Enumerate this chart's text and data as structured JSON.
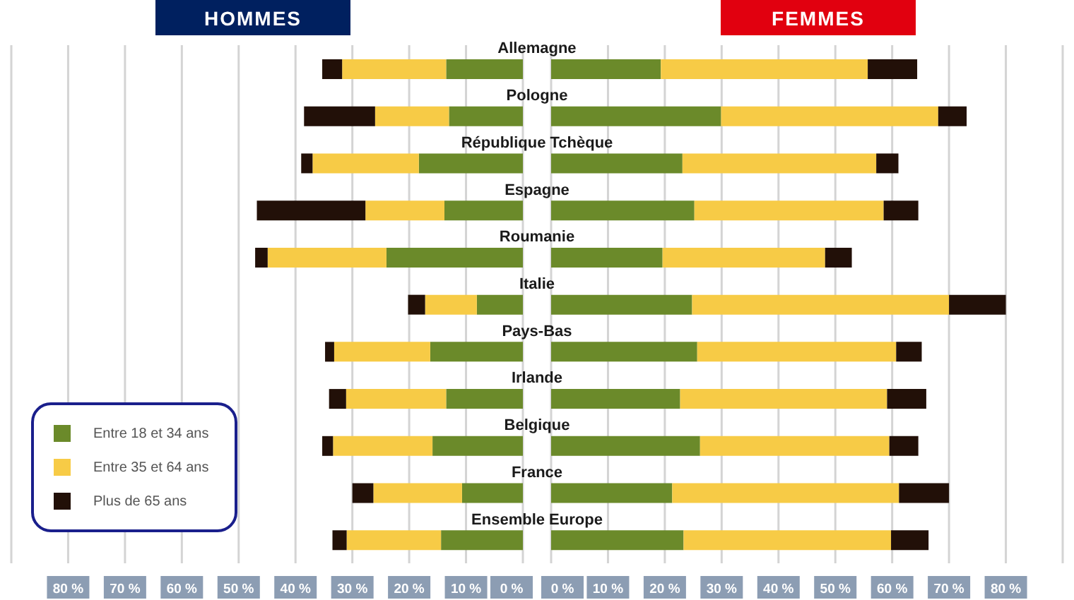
{
  "chart_data": [
    {
      "type": "bar",
      "orientation": "horizontal",
      "stacked": true,
      "title": "HOMMES",
      "categories": [
        "Allemagne",
        "Pologne",
        "République Tchèque",
        "Espagne",
        "Roumanie",
        "Italie",
        "Pays-Bas",
        "Irlande",
        "Belgique",
        "France",
        "Ensemble Europe"
      ],
      "series": [
        {
          "name": "Entre 18 et 34 ans",
          "color": "#6b8a2a",
          "values": [
            13.5,
            13,
            18.3,
            13.8,
            24,
            8.1,
            16.3,
            13.5,
            15.9,
            10.7,
            14.4
          ]
        },
        {
          "name": "Entre 35 et 64 ans",
          "color": "#f7cb46",
          "values": [
            18.3,
            13,
            18.7,
            13.9,
            20.9,
            9.1,
            16.9,
            17.6,
            17.5,
            15.6,
            16.6
          ]
        },
        {
          "name": "Plus de 65 ans",
          "color": "#221008",
          "values": [
            3.5,
            12.5,
            2,
            19.1,
            2.2,
            3,
            1.6,
            3,
            1.9,
            3.7,
            2.5
          ]
        }
      ],
      "xlim": [
        90,
        0
      ],
      "xticks": [
        {
          "value": 0,
          "label": "0 %"
        },
        {
          "value": 10,
          "label": "10 %"
        },
        {
          "value": 20,
          "label": "20 %"
        },
        {
          "value": 30,
          "label": "30 %"
        },
        {
          "value": 40,
          "label": "40 %"
        },
        {
          "value": 50,
          "label": "50 %"
        },
        {
          "value": 60,
          "label": "60 %"
        },
        {
          "value": 70,
          "label": "70 %"
        },
        {
          "value": 80,
          "label": "80 %"
        },
        {
          "value": 90,
          "label": null
        }
      ],
      "grid": "x",
      "legend": "bottom left"
    },
    {
      "type": "bar",
      "orientation": "horizontal",
      "stacked": true,
      "title": "FEMMES",
      "categories": [
        null,
        null,
        null,
        null,
        null,
        null,
        null,
        null,
        null,
        null,
        null
      ],
      "series": [
        {
          "color": "#6b8a2a",
          "values": [
            19.3,
            29.9,
            23.1,
            25.2,
            19.6,
            24.8,
            25.7,
            22.7,
            26.2,
            21.3,
            23.3
          ]
        },
        {
          "color": "#f7cb46",
          "values": [
            36.4,
            38.2,
            34.1,
            33.3,
            28.6,
            45.2,
            35,
            36.4,
            33.3,
            39.9,
            36.5
          ]
        },
        {
          "color": "#221008",
          "values": [
            8.7,
            5,
            3.9,
            6.1,
            4.7,
            10,
            4.5,
            6.9,
            5.1,
            8.8,
            6.6
          ]
        }
      ],
      "xlim": [
        0,
        90
      ],
      "xticks": [
        {
          "value": 0,
          "label": "0 %"
        },
        {
          "value": 10,
          "label": "10 %"
        },
        {
          "value": 20,
          "label": "20 %"
        },
        {
          "value": 30,
          "label": "30 %"
        },
        {
          "value": 40,
          "label": "40 %"
        },
        {
          "value": 50,
          "label": "50 %"
        },
        {
          "value": 60,
          "label": "60 %"
        },
        {
          "value": 70,
          "label": "70 %"
        },
        {
          "value": 80,
          "label": "80 %"
        },
        {
          "value": 90,
          "label": null
        }
      ],
      "grid": "x",
      "tick_labels": "x"
    }
  ]
}
